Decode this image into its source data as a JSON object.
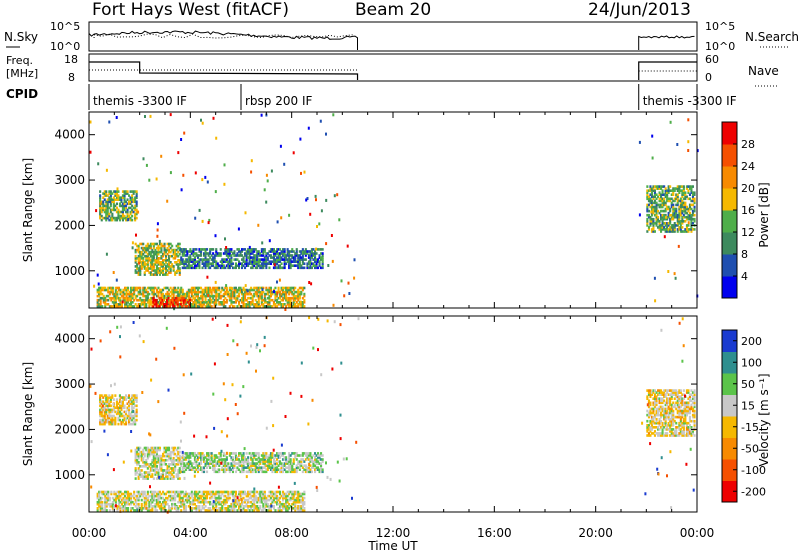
{
  "header": {
    "station": "Fort Hays West (fitACF)",
    "beam": "Beam 20",
    "date": "24/Jun/2013"
  },
  "strips": {
    "nsky": {
      "label": "N.Sky",
      "ticks": [
        "10^5",
        "10^0"
      ]
    },
    "nsearch": {
      "label": "N.Search",
      "ticks": [
        "10^5",
        "10^0"
      ]
    },
    "freq": {
      "label_top": "Freq.",
      "label_bottom": "[MHz]",
      "ticks": [
        "18",
        "8"
      ]
    },
    "nave": {
      "label": "Nave",
      "ticks": [
        "60",
        "0"
      ]
    },
    "cpid": {
      "label": "CPID",
      "segments": [
        {
          "name": "themis -3300 IF",
          "start_hour": 0,
          "end_hour": 6.0
        },
        {
          "name": "rbsp 200 IF",
          "start_hour": 6.0,
          "end_hour": 21.7
        },
        {
          "name": "themis -3300 IF",
          "start_hour": 21.7,
          "end_hour": 24
        }
      ]
    }
  },
  "axes": {
    "xlabel": "Time UT",
    "x_ticks": [
      "00:00",
      "04:00",
      "08:00",
      "12:00",
      "16:00",
      "20:00",
      "00:00"
    ],
    "ylabel": "Slant Range [km]",
    "y_ticks": [
      "1000",
      "2000",
      "3000",
      "4000"
    ]
  },
  "colorbars": {
    "power": {
      "title": "Power [dB]",
      "ticks": [
        "4",
        "8",
        "12",
        "16",
        "20",
        "24",
        "28"
      ]
    },
    "velocity": {
      "title": "Velocity [m s⁻¹]",
      "ticks": [
        "200",
        "100",
        "50",
        "15",
        "-15",
        "-50",
        "-100",
        "-200"
      ]
    }
  },
  "chart_data": [
    {
      "type": "heatmap",
      "title": "Power",
      "xlabel": "Time UT",
      "ylabel": "Slant Range [km]",
      "xlim_hours": [
        0,
        24
      ],
      "ylim_km": [
        180,
        4500
      ],
      "zlabel": "Power [dB]",
      "zlim": [
        0,
        30
      ],
      "data_gap_hours": [
        10.6,
        21.7
      ],
      "colors": [
        "#0000ee",
        "#1f4fb0",
        "#3d8a5e",
        "#4fae4a",
        "#f5b800",
        "#f78a00",
        "#f55000",
        "#ee0000"
      ],
      "echo_regions": [
        {
          "t0": 0.4,
          "t1": 1.9,
          "r0": 2100,
          "r1": 2750,
          "power": 12
        },
        {
          "t0": 1.8,
          "t1": 3.6,
          "r0": 900,
          "r1": 1600,
          "power": 14
        },
        {
          "t0": 3.6,
          "t1": 9.2,
          "r0": 1050,
          "r1": 1500,
          "power": 8
        },
        {
          "t0": 0.3,
          "t1": 8.5,
          "r0": 200,
          "r1": 650,
          "power": 16
        },
        {
          "t0": 2.5,
          "t1": 4.0,
          "r0": 200,
          "r1": 400,
          "power": 26
        },
        {
          "t0": 22.0,
          "t1": 23.9,
          "r0": 1850,
          "r1": 2850,
          "power": 12
        }
      ]
    },
    {
      "type": "heatmap",
      "title": "Velocity",
      "xlabel": "Time UT",
      "ylabel": "Slant Range [km]",
      "xlim_hours": [
        0,
        24
      ],
      "ylim_km": [
        180,
        4500
      ],
      "zlabel": "Velocity [m s⁻¹]",
      "zlim": [
        -250,
        250
      ],
      "data_gap_hours": [
        10.6,
        21.7
      ],
      "colors": [
        "#1a3bd0",
        "#2f8f8f",
        "#5bc44a",
        "#c8c8c8",
        "#f5b800",
        "#f78a00",
        "#f55000",
        "#ee0000"
      ],
      "echo_regions": [
        {
          "t0": 0.4,
          "t1": 1.9,
          "r0": 2100,
          "r1": 2750,
          "velocity": 0
        },
        {
          "t0": 1.8,
          "t1": 3.6,
          "r0": 900,
          "r1": 1600,
          "velocity": -30
        },
        {
          "t0": 3.6,
          "t1": 9.2,
          "r0": 1050,
          "r1": 1500,
          "velocity": -60
        },
        {
          "t0": 0.3,
          "t1": 8.5,
          "r0": 200,
          "r1": 650,
          "velocity": -20
        },
        {
          "t0": 22.0,
          "t1": 23.9,
          "r0": 1850,
          "r1": 2850,
          "velocity": 0
        }
      ]
    }
  ]
}
